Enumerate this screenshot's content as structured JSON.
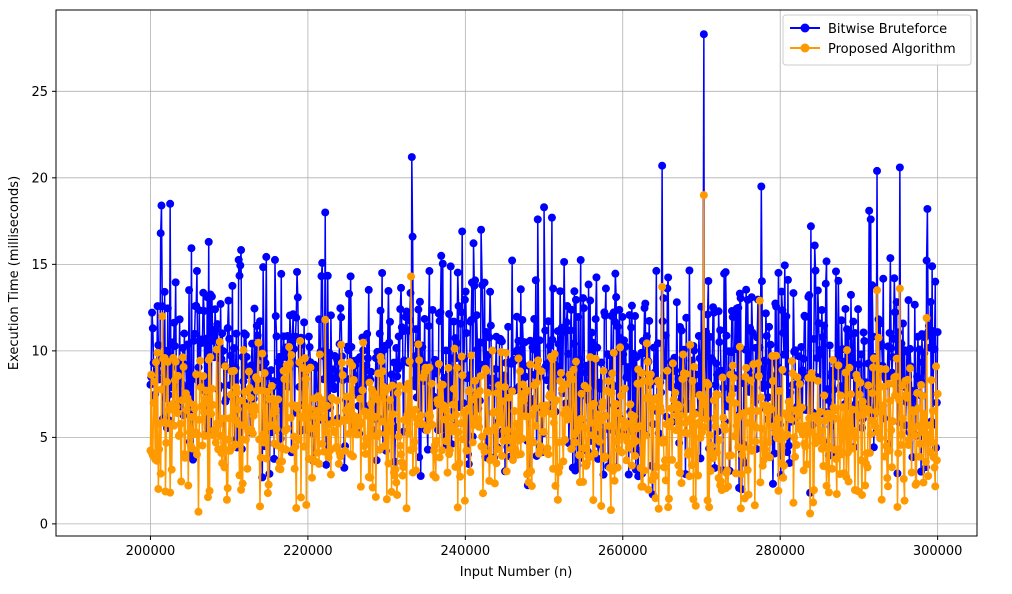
{
  "chart_data": {
    "type": "line",
    "title": "",
    "xlabel": "Input Number (n)",
    "ylabel": "Execution Time (milliseconds)",
    "xlim": [
      188000,
      305000
    ],
    "ylim": [
      -0.7,
      29.7
    ],
    "x_ticks": [
      200000,
      220000,
      240000,
      260000,
      280000,
      300000
    ],
    "y_ticks": [
      0,
      5,
      10,
      15,
      20,
      25
    ],
    "grid": true,
    "legend_position": "top-right",
    "sampling": {
      "x_start": 200000,
      "x_end": 300000,
      "num_points": 1000
    },
    "series": [
      {
        "name": "Bitwise Bruteforce",
        "color": "#0000ff",
        "noise_range": [
          1.8,
          16.5
        ],
        "peaks": [
          {
            "x": 201400,
            "y": 18.4
          },
          {
            "x": 202500,
            "y": 18.5
          },
          {
            "x": 201300,
            "y": 16.8
          },
          {
            "x": 207400,
            "y": 16.3
          },
          {
            "x": 222200,
            "y": 18.0
          },
          {
            "x": 233200,
            "y": 21.2
          },
          {
            "x": 233300,
            "y": 16.6
          },
          {
            "x": 239600,
            "y": 16.9
          },
          {
            "x": 242000,
            "y": 17.0
          },
          {
            "x": 249200,
            "y": 17.6
          },
          {
            "x": 250000,
            "y": 18.3
          },
          {
            "x": 251000,
            "y": 17.7
          },
          {
            "x": 265000,
            "y": 20.7
          },
          {
            "x": 270300,
            "y": 28.3
          },
          {
            "x": 277600,
            "y": 19.5
          },
          {
            "x": 283900,
            "y": 17.2
          },
          {
            "x": 291300,
            "y": 18.1
          },
          {
            "x": 291500,
            "y": 17.6
          },
          {
            "x": 292300,
            "y": 20.4
          },
          {
            "x": 295200,
            "y": 20.6
          },
          {
            "x": 298700,
            "y": 18.2
          },
          {
            "x": 263800,
            "y": 1.7
          },
          {
            "x": 283800,
            "y": 1.8
          },
          {
            "x": 275100,
            "y": 2.0
          },
          {
            "x": 299800,
            "y": 4.4
          },
          {
            "x": 299700,
            "y": 14.0
          }
        ]
      },
      {
        "name": "Proposed Algorithm",
        "color": "#ff9900",
        "noise_range": [
          0.6,
          11.0
        ],
        "peaks": [
          {
            "x": 233100,
            "y": 14.3
          },
          {
            "x": 265000,
            "y": 13.7
          },
          {
            "x": 270300,
            "y": 19.0
          },
          {
            "x": 277400,
            "y": 12.9
          },
          {
            "x": 292300,
            "y": 13.5
          },
          {
            "x": 295200,
            "y": 13.6
          },
          {
            "x": 298600,
            "y": 11.9
          },
          {
            "x": 222200,
            "y": 11.8
          },
          {
            "x": 201500,
            "y": 12.0
          },
          {
            "x": 206100,
            "y": 0.7
          },
          {
            "x": 283800,
            "y": 0.6
          },
          {
            "x": 258500,
            "y": 0.8
          },
          {
            "x": 275000,
            "y": 0.9
          },
          {
            "x": 219800,
            "y": 1.1
          },
          {
            "x": 299800,
            "y": 9.1
          }
        ]
      }
    ]
  }
}
